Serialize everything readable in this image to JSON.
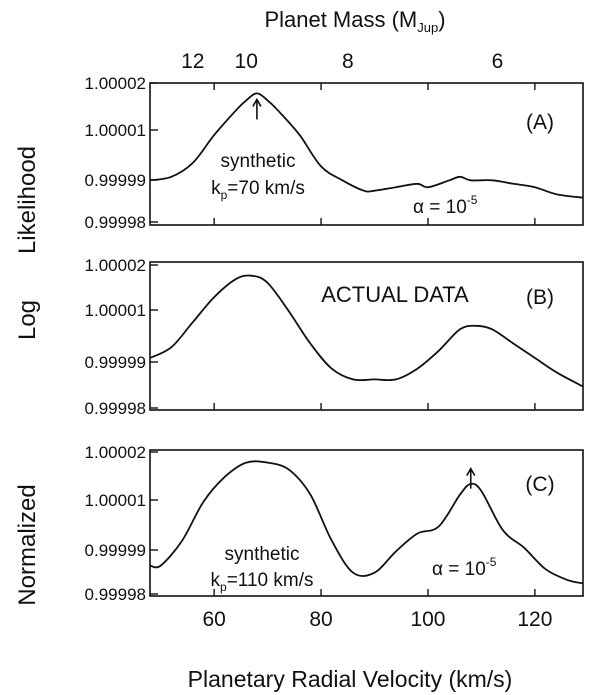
{
  "chart_data": {
    "type": "line",
    "xlabel": "Planetary Radial Velocity (km/s)",
    "ylabel": "Normalized   Log   Likelihood",
    "ylabel_parts": [
      "Normalized",
      "Log",
      "Likelihood"
    ],
    "xlim": [
      48,
      129
    ],
    "x_ticks": [
      "60",
      "80",
      "100",
      "120"
    ],
    "top_axis": {
      "label_main": "Planet Mass (M",
      "label_sub": "Jup",
      "label_close": ")",
      "ticks": [
        {
          "label": "12",
          "x": 56
        },
        {
          "label": "10",
          "x": 66
        },
        {
          "label": "8",
          "x": 85
        },
        {
          "label": "6",
          "x": 113
        }
      ]
    },
    "ylim": [
      0.99998,
      1.00002
    ],
    "y_ticks": [
      "1.00002",
      "1.00001",
      "0.99999",
      "0.99998"
    ],
    "panels": [
      {
        "tag": "(A)",
        "ann_line1": "synthetic",
        "ann_kp_k": "k",
        "ann_kp_sub": "p",
        "ann_kp_rest": "=70 km/s",
        "alpha_base": "α = 10",
        "alpha_exp": "-5",
        "arrow_x": 68,
        "series": [
          {
            "x": [
              48,
              52,
              56,
              60,
              64,
              66,
              68,
              70,
              72,
              76,
              80,
              84,
              88,
              90,
              94,
              98,
              100,
              104,
              106,
              108,
              112,
              116,
              120,
              124,
              129
            ],
            "y": [
              0.999992,
              0.999993,
              0.999997,
              1.000005,
              1.000012,
              1.000015,
              1.000017,
              1.000015,
              1.000012,
              1.000005,
              0.999996,
              0.999992,
              0.999989,
              0.999989,
              0.99999,
              0.999991,
              0.99999,
              0.999992,
              0.999993,
              0.999992,
              0.999992,
              0.999991,
              0.99999,
              0.999988,
              0.999987
            ]
          }
        ]
      },
      {
        "tag": "(B)",
        "title": "ACTUAL  DATA",
        "series": [
          {
            "x": [
              48,
              52,
              56,
              60,
              64,
              67,
              70,
              74,
              78,
              82,
              86,
              90,
              94,
              98,
              102,
              106,
              109,
              112,
              116,
              120,
              124,
              129
            ],
            "y": [
              0.999994,
              0.999997,
              1.000004,
              1.000011,
              1.000016,
              1.000017,
              1.000015,
              1.000007,
              0.999998,
              0.999991,
              0.999988,
              0.999988,
              0.999988,
              0.999991,
              0.999996,
              1.000002,
              1.000003,
              1.000002,
              0.999998,
              0.999994,
              0.99999,
              0.999986
            ]
          }
        ]
      },
      {
        "tag": "(C)",
        "ann_line1": "synthetic",
        "ann_kp_k": "k",
        "ann_kp_sub": "p",
        "ann_kp_rest": "=110 km/s",
        "alpha_base": "α = 10",
        "alpha_exp": "-5",
        "arrow_x": 108,
        "series": [
          {
            "x": [
              48,
              50,
              54,
              58,
              62,
              66,
              70,
              74,
              78,
              82,
              86,
              90,
              94,
              98,
              102,
              106,
              108,
              110,
              114,
              118,
              122,
              126,
              129
            ],
            "y": [
              0.999988,
              0.999988,
              0.999995,
              1.000006,
              1.000013,
              1.000017,
              1.000017,
              1.000015,
              1.000008,
              0.999995,
              0.999986,
              0.999986,
              0.999992,
              0.999997,
              0.999999,
              1.000008,
              1.000011,
              1.000009,
              0.999998,
              0.999993,
              0.999987,
              0.999984,
              0.999983
            ]
          }
        ]
      }
    ]
  }
}
